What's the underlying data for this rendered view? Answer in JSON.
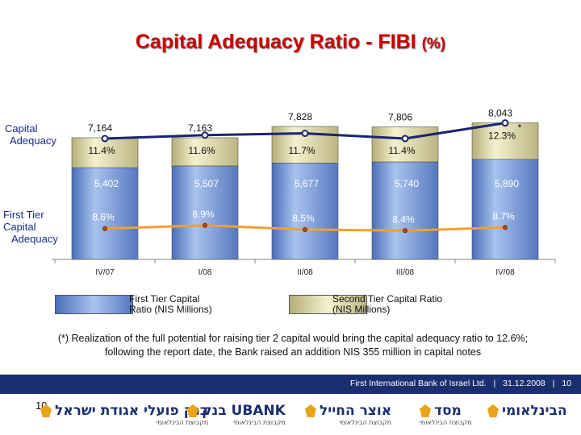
{
  "title": "Capital Adequacy Ratio - FIBI",
  "title_unit": "(%)",
  "side_labels": {
    "capital_adequacy": [
      "Capital",
      "Adequacy"
    ],
    "first_tier": [
      "First Tier",
      "Capital",
      "Adequacy"
    ]
  },
  "chart_data": {
    "type": "bar",
    "stacked": true,
    "categories": [
      "IV/07",
      "I/08",
      "II/08",
      "III/08",
      "IV/08"
    ],
    "series": [
      {
        "name": "First Tier Capital Ratio (NIS Millions)",
        "values": [
          5402,
          5507,
          5677,
          5740,
          5890
        ],
        "color": "#6d8fce"
      },
      {
        "name": "Second Tier Capital Ratio (NIS Millions)",
        "values": [
          1762,
          1656,
          2151,
          2066,
          2153
        ],
        "color": "#d9d4a0"
      }
    ],
    "total_labels": [
      "7,164",
      "7,163",
      "7,828",
      "7,806",
      "8,043"
    ],
    "first_tier_labels": [
      "5,402",
      "5,507",
      "5,677",
      "5,740",
      "5,890"
    ],
    "lines": [
      {
        "name": "Capital Adequacy",
        "values": [
          11.4,
          11.6,
          11.7,
          11.4,
          12.3
        ],
        "labels": [
          "11.4%",
          "11.6%",
          "11.7%",
          "11.4%",
          "12.3%"
        ],
        "color": "#1b2470"
      },
      {
        "name": "First Tier Capital Adequacy",
        "values": [
          8.6,
          8.9,
          8.5,
          8.4,
          8.7
        ],
        "labels": [
          "8.6%",
          "8.9%",
          "8.5%",
          "8.4%",
          "8.7%"
        ],
        "color": "#f0a030"
      }
    ],
    "annotation": "*",
    "legend": "bottom"
  },
  "legend": {
    "first_tier": [
      "First Tier Capital",
      "Ratio (NIS Millions)"
    ],
    "second_tier": [
      "Second Tier Capital Ratio",
      "(NIS Millions)"
    ]
  },
  "footnote": "(*) Realization of the full potential for raising tier 2 capital would bring the capital adequacy ratio to 12.6%; following the report date, the Bank raised an addition NIS 355 million in capital notes",
  "footer": {
    "bank": "First International Bank of Israel Ltd.",
    "date": "31.12.2008",
    "page": "10"
  },
  "page_number": "10",
  "logos": [
    {
      "name": "בנק פועלי אגודת ישראל",
      "sub": "מקבוצת הבינלאומי"
    },
    {
      "name": "בנק UBANK",
      "sub": "מקבוצת הבינלאומי"
    },
    {
      "name": "אוצר החייל",
      "sub": "מקבוצת הבינלאומי"
    },
    {
      "name": "מסד",
      "sub": "מקבוצת הבינלאומי"
    },
    {
      "name": "הבינלאומי",
      "sub": ""
    }
  ]
}
